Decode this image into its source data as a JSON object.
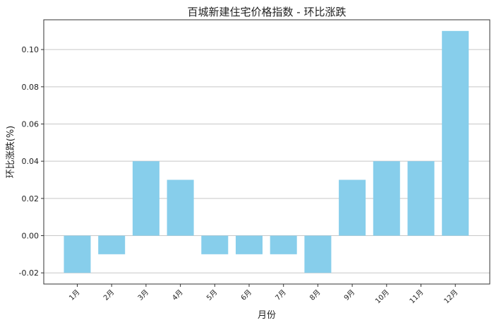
{
  "chart_data": {
    "type": "bar",
    "title": "百城新建住宅价格指数 - 环比涨跌",
    "xlabel": "月份",
    "ylabel": "环比涨跌(%)",
    "categories": [
      "1月",
      "2月",
      "3月",
      "4月",
      "5月",
      "6月",
      "7月",
      "8月",
      "9月",
      "10月",
      "11月",
      "12月"
    ],
    "values": [
      -0.02,
      -0.01,
      0.04,
      0.03,
      -0.01,
      -0.01,
      -0.01,
      -0.02,
      0.03,
      0.04,
      0.04,
      0.11
    ],
    "ylim": [
      -0.026,
      0.116
    ],
    "yticks": [
      "-0.02",
      "0.00",
      "0.02",
      "0.04",
      "0.06",
      "0.08",
      "0.10"
    ],
    "grid": "y",
    "legend": "none",
    "bar_color": "#87CEEB"
  }
}
